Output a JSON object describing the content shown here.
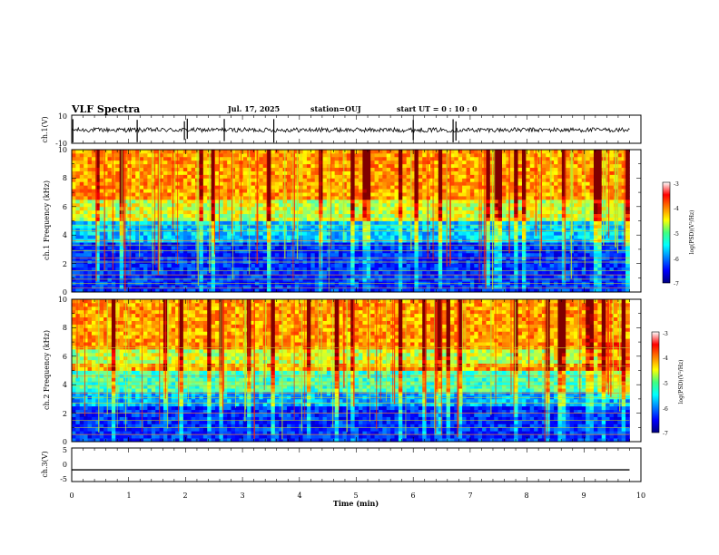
{
  "header": {
    "title": "VLF Spectra",
    "date": "Jul. 17, 2025",
    "station": "station=OUJ",
    "start_ut": "start UT =  0 : 10 : 0"
  },
  "chart_data": [
    {
      "type": "line",
      "name": "ch1-waveform",
      "ylabel": "ch.1(V)",
      "ylim": [
        -10,
        10
      ],
      "yticks": [
        "10",
        "-10"
      ],
      "xlim": [
        0,
        10
      ],
      "baseline": -0.5,
      "spikes_min": [
        0.02,
        1.15,
        1.98,
        2.03,
        2.68,
        3.55,
        6.0,
        6.7,
        6.75
      ]
    },
    {
      "type": "heatmap",
      "name": "ch1-spectrogram",
      "ylabel": "ch.1 Frequency (kHz)",
      "ylim": [
        0,
        10
      ],
      "yticks": [
        "0",
        "2",
        "4",
        "6",
        "8",
        "10"
      ],
      "xlim": [
        0,
        9.8
      ],
      "colorbar": {
        "label": "log(PSD)(V²/Hz)",
        "range": [
          -7,
          -3
        ],
        "ticks": [
          "-3",
          "-4",
          "-5",
          "-6",
          "-7"
        ]
      }
    },
    {
      "type": "heatmap",
      "name": "ch2-spectrogram",
      "ylabel": "ch.2 Frequency (kHz)",
      "ylim": [
        0,
        10
      ],
      "yticks": [
        "0",
        "2",
        "4",
        "6",
        "8",
        "10"
      ],
      "xlim": [
        0,
        9.8
      ],
      "colorbar": {
        "label": "log(PSD)(V²/Hz)",
        "range": [
          -7,
          -3
        ],
        "ticks": [
          "-3",
          "-4",
          "-5",
          "-6",
          "-7"
        ]
      }
    },
    {
      "type": "line",
      "name": "ch3-waveform",
      "ylabel": "ch.3(V)",
      "ylim": [
        -5,
        5
      ],
      "yticks": [
        "5",
        "0",
        "-5"
      ],
      "xlim": [
        0,
        10
      ],
      "constant_value": -1.5
    }
  ],
  "xaxis": {
    "label": "Time (min)",
    "ticks": [
      "0",
      "1",
      "2",
      "3",
      "4",
      "5",
      "6",
      "7",
      "8",
      "9",
      "10"
    ]
  },
  "colors": {
    "jet_low": "#00007f",
    "jet_mid": "#00ff80",
    "jet_high": "#ff0000"
  }
}
